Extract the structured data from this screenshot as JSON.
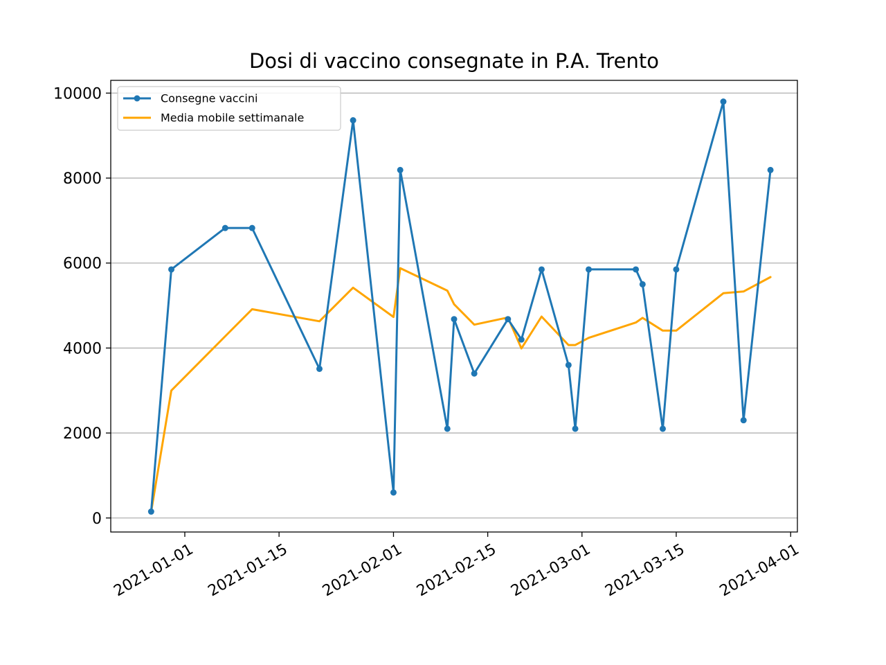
{
  "chart_data": {
    "type": "line",
    "title": "Dosi di vaccino consegnate in P.A. Trento",
    "xlabel": "",
    "ylabel": "",
    "xlim": [
      "2020-12-21",
      "2021-04-02"
    ],
    "ylim": [
      -330,
      10300
    ],
    "x_ticks": [
      "2021-01-01",
      "2021-01-15",
      "2021-02-01",
      "2021-02-15",
      "2021-03-01",
      "2021-03-15",
      "2021-04-01"
    ],
    "y_ticks": [
      0,
      2000,
      4000,
      6000,
      8000,
      10000
    ],
    "grid": "horizontal",
    "legend_position": "top-left",
    "series": [
      {
        "name": "Consegne vaccini",
        "color": "#1f77b4",
        "marker": "dot",
        "points": [
          {
            "x": "2020-12-27",
            "y": 150
          },
          {
            "x": "2020-12-30",
            "y": 5850
          },
          {
            "x": "2021-01-07",
            "y": 6825
          },
          {
            "x": "2021-01-11",
            "y": 6825
          },
          {
            "x": "2021-01-21",
            "y": 3510
          },
          {
            "x": "2021-01-26",
            "y": 9360
          },
          {
            "x": "2021-02-01",
            "y": 600
          },
          {
            "x": "2021-02-02",
            "y": 8190
          },
          {
            "x": "2021-02-09",
            "y": 2100
          },
          {
            "x": "2021-02-10",
            "y": 4680
          },
          {
            "x": "2021-02-13",
            "y": 3400
          },
          {
            "x": "2021-02-18",
            "y": 4680
          },
          {
            "x": "2021-02-20",
            "y": 4200
          },
          {
            "x": "2021-02-23",
            "y": 5850
          },
          {
            "x": "2021-02-27",
            "y": 3600
          },
          {
            "x": "2021-02-28",
            "y": 2100
          },
          {
            "x": "2021-03-02",
            "y": 5850
          },
          {
            "x": "2021-03-09",
            "y": 5850
          },
          {
            "x": "2021-03-10",
            "y": 5500
          },
          {
            "x": "2021-03-13",
            "y": 2100
          },
          {
            "x": "2021-03-15",
            "y": 5850
          },
          {
            "x": "2021-03-22",
            "y": 9800
          },
          {
            "x": "2021-03-25",
            "y": 2300
          },
          {
            "x": "2021-03-29",
            "y": 8190
          }
        ]
      },
      {
        "name": "Media mobile settimanale",
        "color": "#ffa500",
        "marker": "none",
        "points": [
          {
            "x": "2020-12-27",
            "y": 150
          },
          {
            "x": "2020-12-30",
            "y": 3000
          },
          {
            "x": "2021-01-07",
            "y": 4275
          },
          {
            "x": "2021-01-11",
            "y": 4913
          },
          {
            "x": "2021-01-21",
            "y": 4630
          },
          {
            "x": "2021-01-26",
            "y": 5420
          },
          {
            "x": "2021-02-01",
            "y": 4730
          },
          {
            "x": "2021-02-02",
            "y": 5880
          },
          {
            "x": "2021-02-09",
            "y": 5350
          },
          {
            "x": "2021-02-10",
            "y": 5030
          },
          {
            "x": "2021-02-13",
            "y": 4550
          },
          {
            "x": "2021-02-18",
            "y": 4720
          },
          {
            "x": "2021-02-20",
            "y": 3990
          },
          {
            "x": "2021-02-23",
            "y": 4740
          },
          {
            "x": "2021-02-27",
            "y": 4070
          },
          {
            "x": "2021-02-28",
            "y": 4070
          },
          {
            "x": "2021-03-02",
            "y": 4240
          },
          {
            "x": "2021-03-09",
            "y": 4600
          },
          {
            "x": "2021-03-10",
            "y": 4710
          },
          {
            "x": "2021-03-13",
            "y": 4410
          },
          {
            "x": "2021-03-15",
            "y": 4410
          },
          {
            "x": "2021-03-22",
            "y": 5290
          },
          {
            "x": "2021-03-25",
            "y": 5330
          },
          {
            "x": "2021-03-29",
            "y": 5670
          }
        ]
      }
    ]
  }
}
